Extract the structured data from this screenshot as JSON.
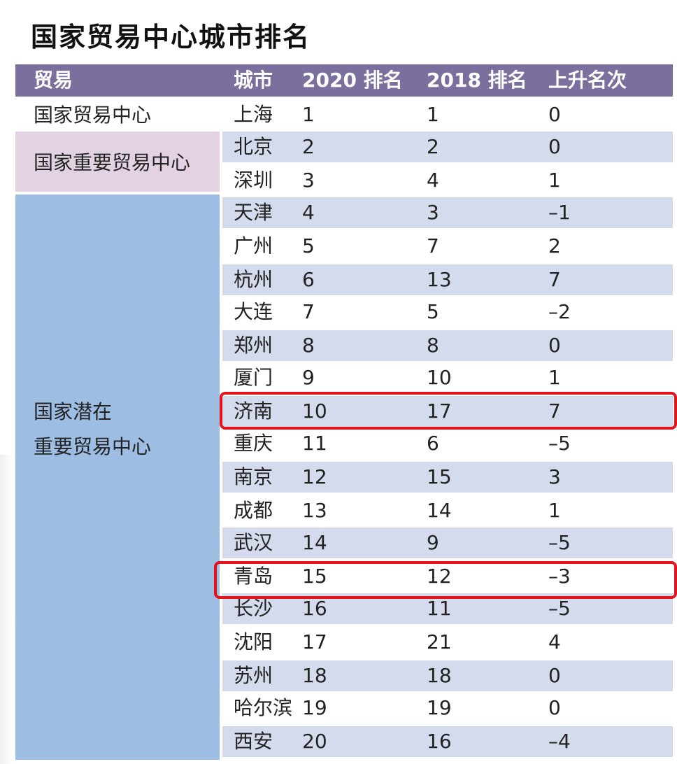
{
  "title": "国家贸易中心城市排名",
  "headers": {
    "trade": "贸易",
    "city": "城市",
    "rank2020": "2020 排名",
    "rank2018": "2018 排名",
    "rise": "上升名次"
  },
  "categories": {
    "c1": "国家贸易中心",
    "c2": "国家重要贸易中心",
    "c3_line1": "国家潜在",
    "c3_line2": "重要贸易中心"
  },
  "rows": [
    {
      "city": "上海",
      "r2020": "1",
      "r2018": "1",
      "rise": "0"
    },
    {
      "city": "北京",
      "r2020": "2",
      "r2018": "2",
      "rise": "0"
    },
    {
      "city": "深圳",
      "r2020": "3",
      "r2018": "4",
      "rise": "1"
    },
    {
      "city": "天津",
      "r2020": "4",
      "r2018": "3",
      "rise": "–1"
    },
    {
      "city": "广州",
      "r2020": "5",
      "r2018": "7",
      "rise": "2"
    },
    {
      "city": "杭州",
      "r2020": "6",
      "r2018": "13",
      "rise": "7"
    },
    {
      "city": "大连",
      "r2020": "7",
      "r2018": "5",
      "rise": "–2"
    },
    {
      "city": "郑州",
      "r2020": "8",
      "r2018": "8",
      "rise": "0"
    },
    {
      "city": "厦门",
      "r2020": "9",
      "r2018": "10",
      "rise": "1"
    },
    {
      "city": "济南",
      "r2020": "10",
      "r2018": "17",
      "rise": "7"
    },
    {
      "city": "重庆",
      "r2020": "11",
      "r2018": "6",
      "rise": "–5"
    },
    {
      "city": "南京",
      "r2020": "12",
      "r2018": "15",
      "rise": "3"
    },
    {
      "city": "成都",
      "r2020": "13",
      "r2018": "14",
      "rise": "1"
    },
    {
      "city": "武汉",
      "r2020": "14",
      "r2018": "9",
      "rise": "–5"
    },
    {
      "city": "青岛",
      "r2020": "15",
      "r2018": "12",
      "rise": "–3"
    },
    {
      "city": "长沙",
      "r2020": "16",
      "r2018": "11",
      "rise": "–5"
    },
    {
      "city": "沈阳",
      "r2020": "17",
      "r2018": "21",
      "rise": "4"
    },
    {
      "city": "苏州",
      "r2020": "18",
      "r2018": "18",
      "rise": "0"
    },
    {
      "city": "哈尔滨",
      "r2020": "19",
      "r2018": "19",
      "rise": "0"
    },
    {
      "city": "西安",
      "r2020": "20",
      "r2018": "16",
      "rise": "–4"
    }
  ],
  "highlight_color": "#e3141c",
  "header_color": "#7b6f9e",
  "row_shade_color": "#d4dbed",
  "category_colors": {
    "c2": "#e2d2e2",
    "c3": "#9dbde3"
  }
}
